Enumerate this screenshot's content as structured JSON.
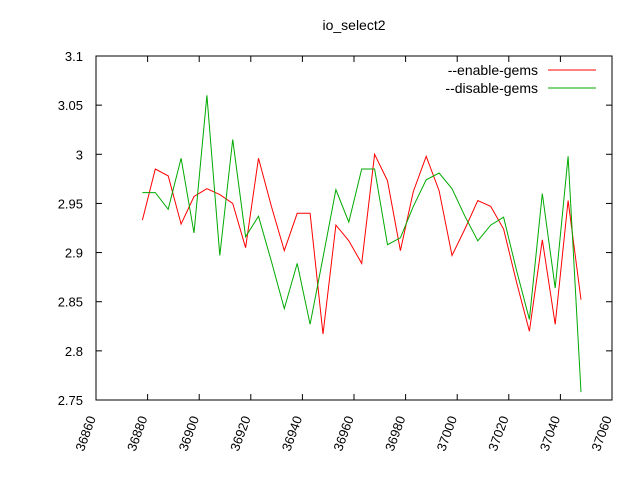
{
  "chart_data": {
    "type": "line",
    "title": "io_select2",
    "xlabel": "",
    "ylabel": "",
    "xlim": [
      36860,
      37060
    ],
    "ylim": [
      2.75,
      3.1
    ],
    "xticks": [
      36860,
      36880,
      36900,
      36920,
      36940,
      36960,
      36980,
      37000,
      37020,
      37040,
      37060
    ],
    "yticks": [
      2.75,
      2.8,
      2.85,
      2.9,
      2.95,
      3,
      3.05,
      3.1
    ],
    "ytick_labels": [
      "2.75",
      "2.8",
      "2.85",
      "2.9",
      "2.95",
      "3",
      "3.05",
      "3.1"
    ],
    "legend_position": "top-right",
    "grid": false,
    "series": [
      {
        "name": "--enable-gems",
        "color": "#ff0000",
        "x": [
          36878,
          36883,
          36888,
          36893,
          36898,
          36903,
          36908,
          36913,
          36918,
          36923,
          36928,
          36933,
          36938,
          36943,
          36948,
          36953,
          36958,
          36963,
          36968,
          36973,
          36978,
          36983,
          36988,
          36993,
          36998,
          37003,
          37008,
          37013,
          37018,
          37023,
          37028,
          37033,
          37038,
          37043,
          37048
        ],
        "values": [
          2.933,
          2.985,
          2.978,
          2.929,
          2.957,
          2.965,
          2.959,
          2.95,
          2.905,
          2.996,
          2.947,
          2.902,
          2.94,
          2.94,
          2.817,
          2.928,
          2.912,
          2.889,
          3.0,
          2.973,
          2.902,
          2.962,
          2.998,
          2.963,
          2.897,
          2.924,
          2.953,
          2.947,
          2.924,
          2.87,
          2.82,
          2.913,
          2.827,
          2.953,
          2.852
        ]
      },
      {
        "name": "--disable-gems",
        "color": "#00aa00",
        "x": [
          36878,
          36883,
          36888,
          36893,
          36898,
          36903,
          36908,
          36913,
          36918,
          36923,
          36928,
          36933,
          36938,
          36943,
          36948,
          36953,
          36958,
          36963,
          36968,
          36973,
          36978,
          36983,
          36988,
          36993,
          36998,
          37003,
          37008,
          37013,
          37018,
          37023,
          37028,
          37033,
          37038,
          37043,
          37048
        ],
        "values": [
          2.961,
          2.961,
          2.944,
          2.996,
          2.92,
          3.06,
          2.897,
          3.015,
          2.916,
          2.937,
          2.891,
          2.843,
          2.889,
          2.827,
          2.895,
          2.964,
          2.931,
          2.985,
          2.985,
          2.908,
          2.915,
          2.947,
          2.974,
          2.981,
          2.965,
          2.937,
          2.912,
          2.928,
          2.936,
          2.882,
          2.832,
          2.96,
          2.864,
          2.998,
          2.758
        ]
      }
    ]
  }
}
